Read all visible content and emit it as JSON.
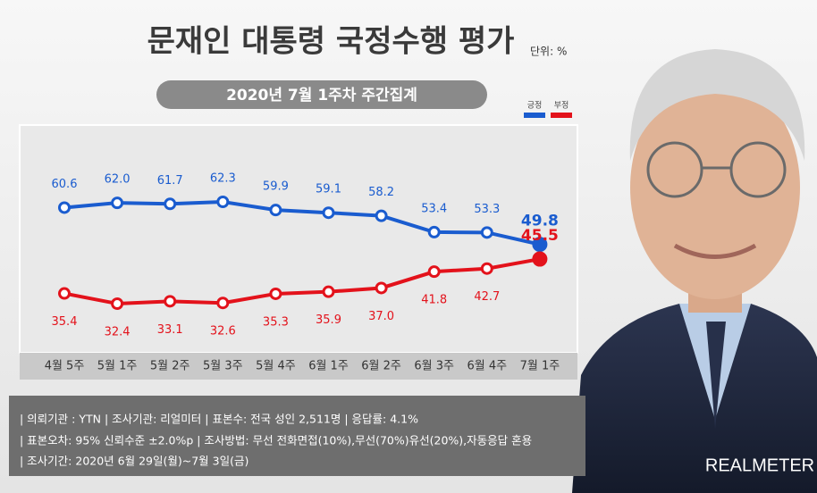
{
  "chart_data": {
    "type": "line",
    "title": "문재인 대통령 국정수행 평가",
    "unit": "단위: %",
    "subtitle": "2020년 7월 1주차 주간집계",
    "categories": [
      "4월 5주",
      "5월 1주",
      "5월 2주",
      "5월 3주",
      "5월 4주",
      "6월 1주",
      "6월 2주",
      "6월 3주",
      "6월 4주",
      "7월 1주"
    ],
    "series": [
      {
        "name": "긍정",
        "color": "#1a5ccf",
        "values": [
          60.6,
          62.0,
          61.7,
          62.3,
          59.9,
          59.1,
          58.2,
          53.4,
          53.3,
          49.8
        ],
        "value_labels": [
          "60.6",
          "62.0",
          "61.7",
          "62.3",
          "59.9",
          "59.1",
          "58.2",
          "53.4",
          "53.3",
          "49.8"
        ]
      },
      {
        "name": "부정",
        "color": "#e3121b",
        "values": [
          35.4,
          32.4,
          33.1,
          32.6,
          35.3,
          35.9,
          37.0,
          41.8,
          42.7,
          45.5
        ],
        "value_labels": [
          "35.4",
          "32.4",
          "33.1",
          "32.6",
          "35.3",
          "35.9",
          "37.0",
          "41.8",
          "42.7",
          "45.5"
        ]
      }
    ]
  },
  "notes": [
    "| 의뢰기관 : YTN  |  조사기관: 리얼미터 |  표본수: 전국 성인 2,511명  |  응답률: 4.1%",
    "| 표본오차: 95% 신뢰수준 ±2.0%p  |  조사방법: 무선 전화면접(10%),무선(70%)유선(20%),자동응답 혼용",
    "| 조사기간: 2020년 6월 29일(월)~7월 3일(금)"
  ],
  "brand": "REALMETER"
}
